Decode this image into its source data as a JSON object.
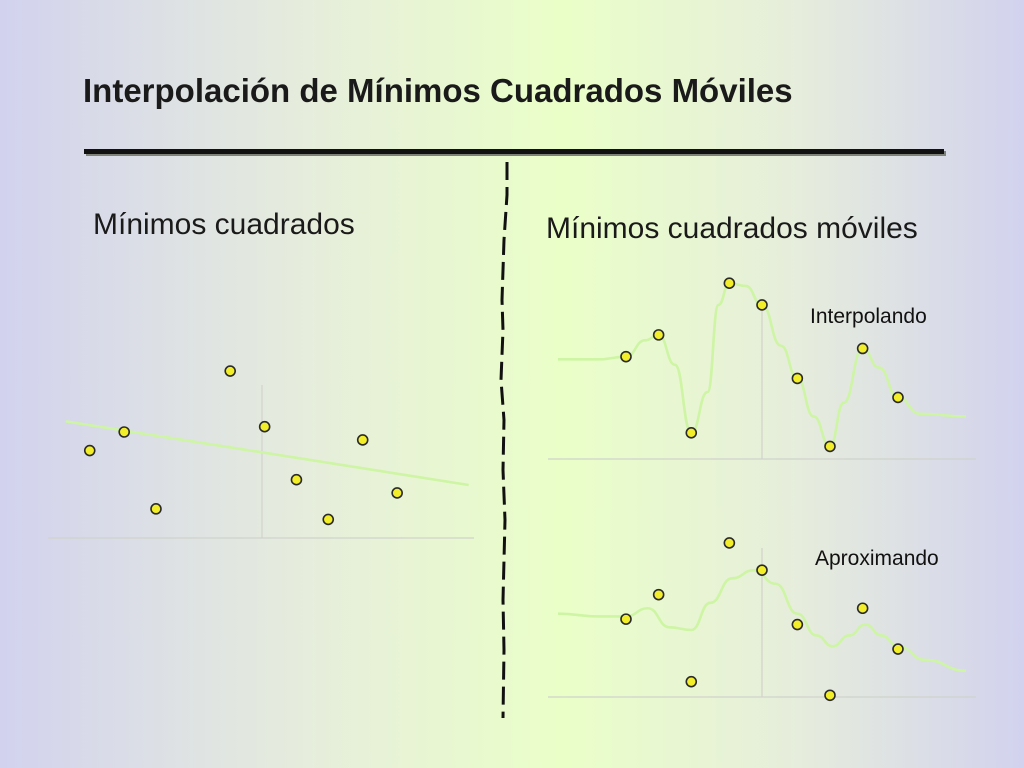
{
  "slide": {
    "title": "Interpolación de Mínimos Cuadrados Móviles",
    "left_heading": "Mínimos cuadrados",
    "right_heading": "Mínimos cuadrados móviles",
    "interp_label": "Interpolando",
    "approx_label": "Aproximando"
  },
  "colors": {
    "point_fill": "#f2ee2a",
    "point_stroke": "#2a2a2a",
    "fit_curve": "#cdf5a4",
    "axis": "#d0d3cc"
  },
  "chart_data": [
    {
      "type": "scatter",
      "panel": "left",
      "fit": "linear",
      "points": [
        [
          -6.5,
          -0.2
        ],
        [
          -5.2,
          0.5
        ],
        [
          -4.0,
          -2.4
        ],
        [
          -1.2,
          2.8
        ],
        [
          0.1,
          0.7
        ],
        [
          1.3,
          -1.3
        ],
        [
          2.5,
          -2.8
        ],
        [
          3.8,
          0.2
        ],
        [
          5.1,
          -1.8
        ]
      ],
      "fit_line": [
        [
          -7.4,
          0.9
        ],
        [
          7.8,
          -1.5
        ]
      ]
    },
    {
      "type": "scatter",
      "panel": "right-top",
      "fit": "moving_least_squares_interpolating",
      "points": [
        [
          -5.0,
          2.3
        ],
        [
          -3.8,
          3.1
        ],
        [
          -2.6,
          -0.5
        ],
        [
          -1.2,
          5.0
        ],
        [
          0.0,
          4.2
        ],
        [
          1.3,
          1.5
        ],
        [
          2.5,
          -1.0
        ],
        [
          3.7,
          2.6
        ],
        [
          5.0,
          0.8
        ]
      ],
      "curve": [
        [
          -7.5,
          2.2
        ],
        [
          -6.0,
          2.2
        ],
        [
          -5.0,
          2.3
        ],
        [
          -4.3,
          2.9
        ],
        [
          -3.8,
          3.1
        ],
        [
          -3.2,
          2.0
        ],
        [
          -2.6,
          -0.5
        ],
        [
          -2.0,
          1.0
        ],
        [
          -1.6,
          4.2
        ],
        [
          -1.2,
          5.0
        ],
        [
          -0.6,
          4.9
        ],
        [
          0.0,
          4.2
        ],
        [
          0.7,
          2.7
        ],
        [
          1.3,
          1.5
        ],
        [
          1.9,
          0.1
        ],
        [
          2.5,
          -1.0
        ],
        [
          3.0,
          0.6
        ],
        [
          3.7,
          2.6
        ],
        [
          4.3,
          1.9
        ],
        [
          5.0,
          0.8
        ],
        [
          5.8,
          0.2
        ],
        [
          7.5,
          0.1
        ]
      ]
    },
    {
      "type": "scatter",
      "panel": "right-bottom",
      "fit": "moving_least_squares_approximating",
      "points": [
        [
          -5.0,
          1.4
        ],
        [
          -3.8,
          2.3
        ],
        [
          -2.6,
          -0.9
        ],
        [
          -1.2,
          4.2
        ],
        [
          0.0,
          3.2
        ],
        [
          1.3,
          1.2
        ],
        [
          2.5,
          -1.4
        ],
        [
          3.7,
          1.8
        ],
        [
          5.0,
          0.3
        ]
      ],
      "curve": [
        [
          -7.5,
          1.6
        ],
        [
          -6.0,
          1.5
        ],
        [
          -5.0,
          1.5
        ],
        [
          -4.2,
          1.8
        ],
        [
          -3.4,
          1.1
        ],
        [
          -2.6,
          1.0
        ],
        [
          -1.9,
          2.0
        ],
        [
          -1.1,
          2.9
        ],
        [
          -0.3,
          3.2
        ],
        [
          0.5,
          2.7
        ],
        [
          1.3,
          1.6
        ],
        [
          2.0,
          0.8
        ],
        [
          2.6,
          0.4
        ],
        [
          3.2,
          0.8
        ],
        [
          3.8,
          1.2
        ],
        [
          4.4,
          0.8
        ],
        [
          5.0,
          0.4
        ],
        [
          6.0,
          -0.1
        ],
        [
          7.5,
          -0.5
        ]
      ]
    }
  ]
}
